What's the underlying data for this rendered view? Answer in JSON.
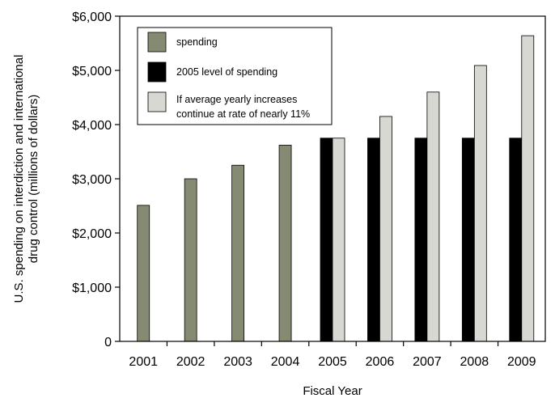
{
  "chart_data": {
    "type": "bar",
    "categories": [
      "2001",
      "2002",
      "2003",
      "2004",
      "2005",
      "2006",
      "2007",
      "2008",
      "2009"
    ],
    "series": [
      {
        "name": "spending",
        "color": "#858b72",
        "values": [
          2510,
          3000,
          3250,
          3620,
          null,
          null,
          null,
          null,
          null
        ]
      },
      {
        "name": "2005 level of spending",
        "color": "#000000",
        "values": [
          null,
          null,
          null,
          null,
          3750,
          3750,
          3750,
          3750,
          3750
        ]
      },
      {
        "name": "If average yearly increases continue at rate of nearly 11%",
        "name_lines": [
          "If average yearly increases",
          "continue at rate of nearly 11%"
        ],
        "color": "#d7d8d2",
        "values": [
          null,
          null,
          null,
          null,
          3750,
          4150,
          4600,
          5090,
          5640
        ]
      }
    ],
    "xlabel": "Fiscal Year",
    "ylabel_lines": [
      "U.S. spending  on interdiction and international",
      "drug control (millions of dollars)"
    ],
    "ylim": [
      0,
      6000
    ],
    "yticks": [
      0,
      1000,
      2000,
      3000,
      4000,
      5000,
      6000
    ],
    "ytick_labels": [
      "0",
      "$1,000",
      "$2,000",
      "$3,000",
      "$4,000",
      "$5,000",
      "$6,000"
    ],
    "grid": false,
    "legend_position": "top-left"
  }
}
